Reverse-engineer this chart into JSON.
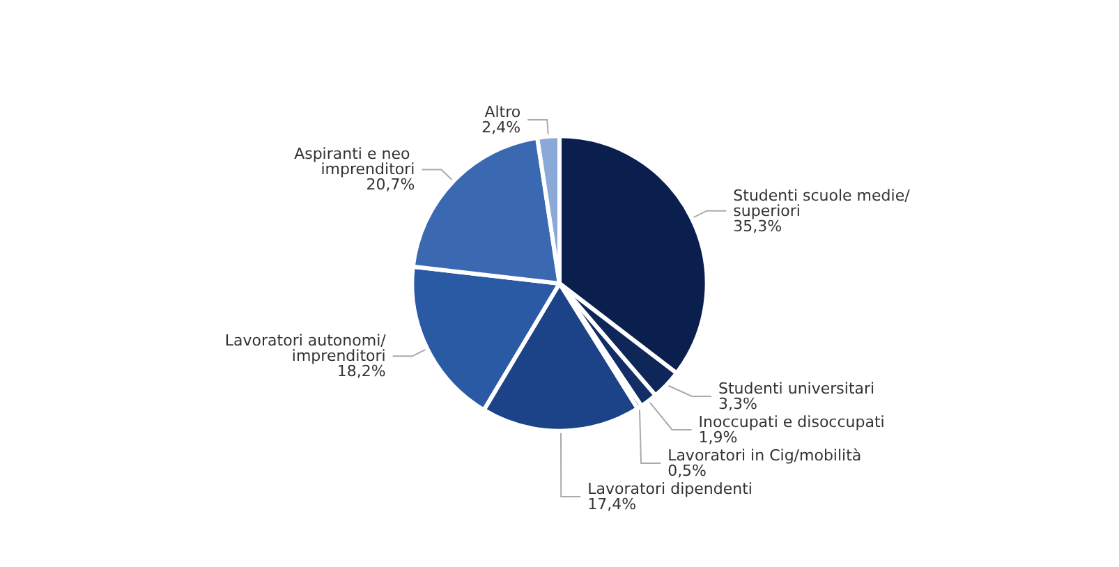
{
  "chart_data": {
    "type": "pie",
    "categories": [
      "Studenti scuole medie/superiori",
      "Studenti universitari",
      "Inoccupati e disoccupati",
      "Lavoratori in Cig/mobilità",
      "Lavoratori dipendenti",
      "Lavoratori autonomi/imprenditori",
      "Aspiranti e neo imprenditori",
      "Altro"
    ],
    "values": [
      35.3,
      3.3,
      1.9,
      0.5,
      17.4,
      18.2,
      20.7,
      2.4
    ],
    "value_labels": [
      "35,3%",
      "3,3%",
      "1,9%",
      "0,5%",
      "17,4%",
      "18,2%",
      "20,7%",
      "2,4%"
    ],
    "colors": [
      "#0b1f4f",
      "#0e2658",
      "#132d66",
      "#173a78",
      "#1c4287",
      "#2b5aa5",
      "#3b69b1",
      "#8aa8d8"
    ],
    "legend": false
  }
}
